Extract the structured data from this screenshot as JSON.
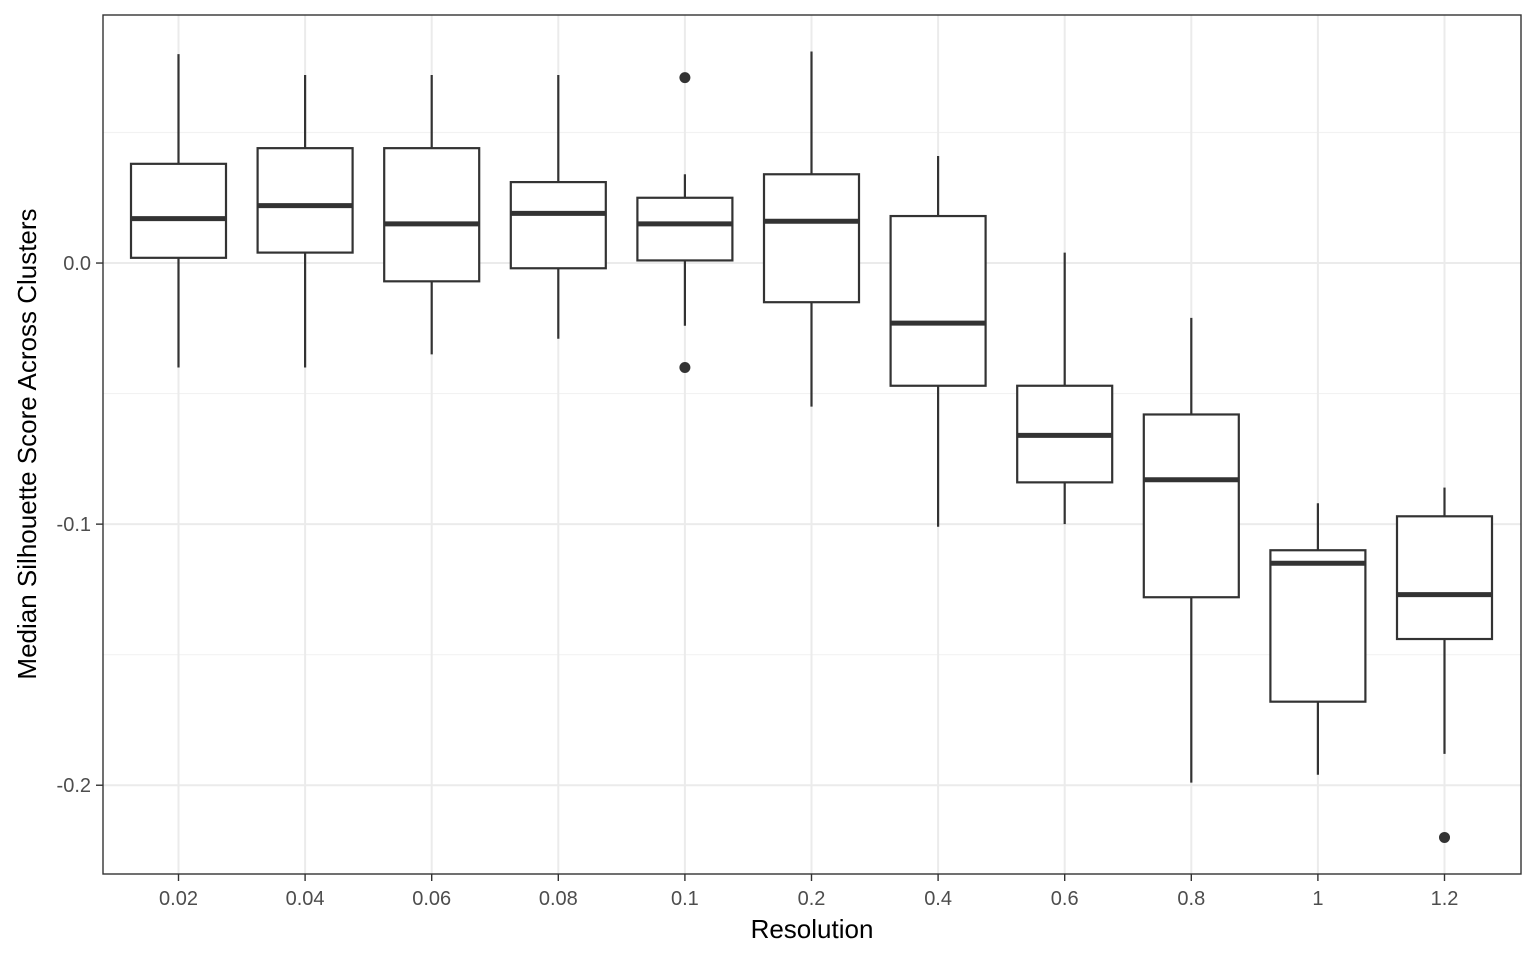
{
  "chart_data": {
    "type": "box",
    "title": "",
    "xlabel": "Resolution",
    "ylabel": "Median Silhouette Score Across Clusters",
    "categories": [
      "0.02",
      "0.04",
      "0.06",
      "0.08",
      "0.1",
      "0.2",
      "0.4",
      "0.6",
      "0.8",
      "1",
      "1.2"
    ],
    "yticks": [
      0.0,
      -0.1,
      -0.2
    ],
    "ytick_labels": [
      "0.0",
      "-0.1",
      "-0.2"
    ],
    "ylim": [
      -0.234,
      0.095
    ],
    "grid": true,
    "legend": "none",
    "boxes": [
      {
        "category": "0.02",
        "whisker_low": -0.04,
        "q1": 0.002,
        "median": 0.017,
        "q3": 0.038,
        "whisker_high": 0.08,
        "outliers": []
      },
      {
        "category": "0.04",
        "whisker_low": -0.04,
        "q1": 0.004,
        "median": 0.022,
        "q3": 0.044,
        "whisker_high": 0.072,
        "outliers": []
      },
      {
        "category": "0.06",
        "whisker_low": -0.035,
        "q1": -0.007,
        "median": 0.015,
        "q3": 0.044,
        "whisker_high": 0.072,
        "outliers": []
      },
      {
        "category": "0.08",
        "whisker_low": -0.029,
        "q1": -0.002,
        "median": 0.019,
        "q3": 0.031,
        "whisker_high": 0.072,
        "outliers": []
      },
      {
        "category": "0.1",
        "whisker_low": -0.024,
        "q1": 0.001,
        "median": 0.015,
        "q3": 0.025,
        "whisker_high": 0.034,
        "outliers": [
          0.071,
          -0.04
        ]
      },
      {
        "category": "0.2",
        "whisker_low": -0.055,
        "q1": -0.015,
        "median": 0.016,
        "q3": 0.034,
        "whisker_high": 0.081,
        "outliers": []
      },
      {
        "category": "0.4",
        "whisker_low": -0.101,
        "q1": -0.047,
        "median": -0.023,
        "q3": 0.018,
        "whisker_high": 0.041,
        "outliers": []
      },
      {
        "category": "0.6",
        "whisker_low": -0.1,
        "q1": -0.084,
        "median": -0.066,
        "q3": -0.047,
        "whisker_high": 0.004,
        "outliers": []
      },
      {
        "category": "0.8",
        "whisker_low": -0.199,
        "q1": -0.128,
        "median": -0.083,
        "q3": -0.058,
        "whisker_high": -0.021,
        "outliers": []
      },
      {
        "category": "1",
        "whisker_low": -0.196,
        "q1": -0.168,
        "median": -0.115,
        "q3": -0.11,
        "whisker_high": -0.092,
        "outliers": []
      },
      {
        "category": "1.2",
        "whisker_low": -0.188,
        "q1": -0.144,
        "median": -0.127,
        "q3": -0.097,
        "whisker_high": -0.086,
        "outliers": [
          -0.22
        ]
      }
    ],
    "colors": {
      "box_stroke": "#333333",
      "box_fill": "#ffffff",
      "grid_major": "#ebebeb",
      "grid_minor": "#f2f2f2",
      "panel_border": "#333333",
      "tick_text": "#4d4d4d",
      "title_text": "#000000"
    }
  }
}
